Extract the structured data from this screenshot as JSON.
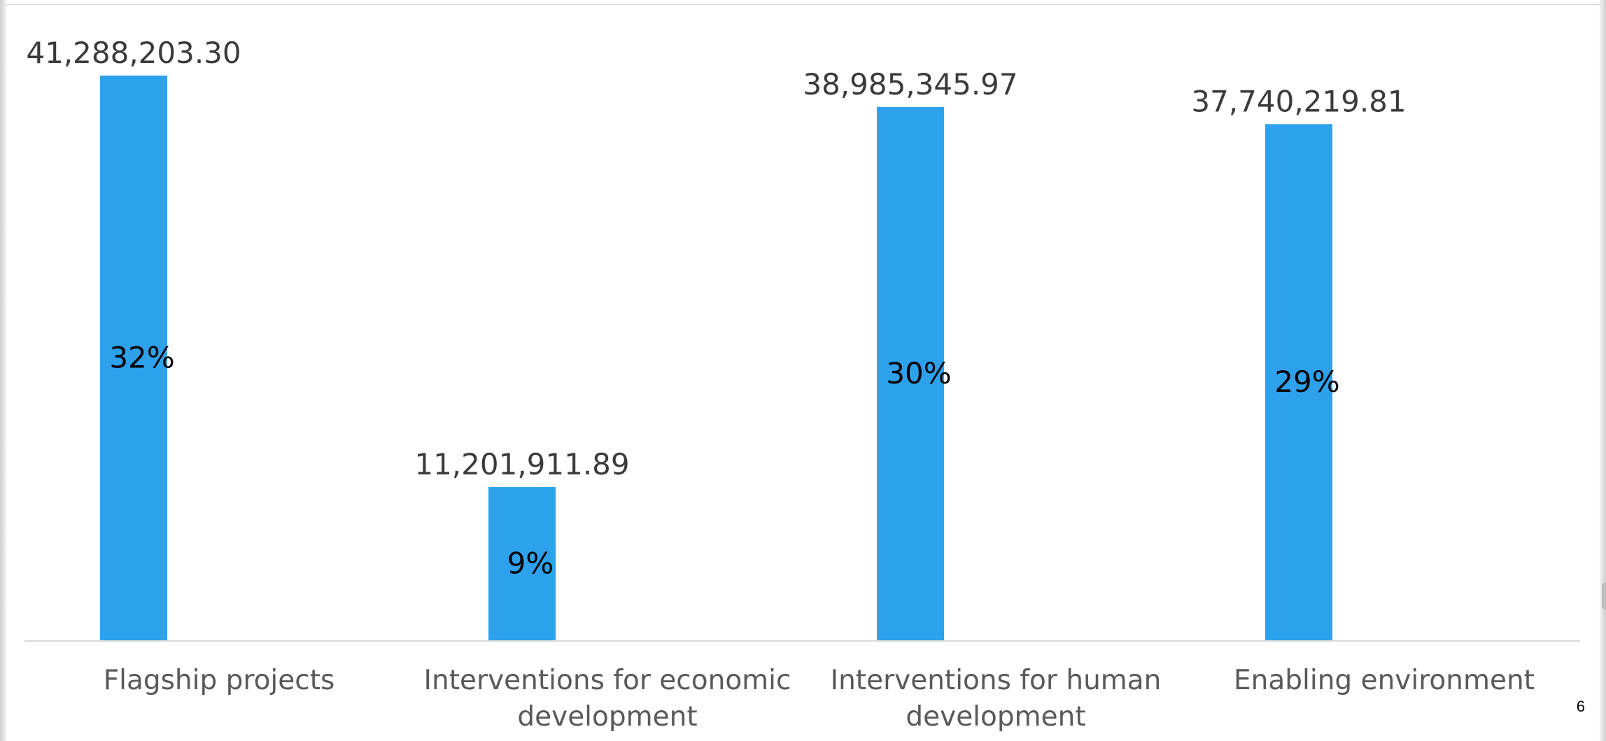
{
  "chart_data": {
    "type": "bar",
    "categories": [
      [
        "Flagship projects"
      ],
      [
        "Interventions for economic",
        "development"
      ],
      [
        "Interventions for human",
        "development"
      ],
      [
        "Enabling environment"
      ]
    ],
    "values": [
      41288203.3,
      11201911.89,
      38985345.97,
      37740219.81
    ],
    "value_labels": [
      "41,288,203.30",
      "11,201,911.89",
      "38,985,345.97",
      "37,740,219.81"
    ],
    "percent_labels": [
      "32%",
      "9%",
      "30%",
      "29%"
    ],
    "ylim": [
      0,
      41288203.3
    ],
    "grid": false,
    "legend": "none",
    "colors": {
      "bar": "#2ea1ec",
      "value_label": "#3b3b3b",
      "percent_label": "#000000",
      "category_label": "#595959",
      "axis": "#d9d9d9"
    }
  },
  "slide": {
    "page_number": "6"
  }
}
